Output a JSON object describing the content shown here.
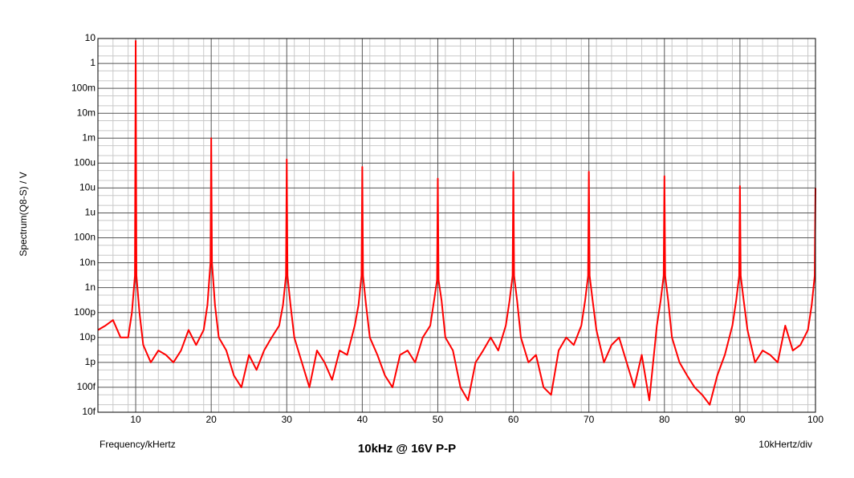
{
  "chart_data": {
    "type": "line",
    "title": "10kHz @ 16V P-P",
    "x_label": "Frequency/kHertz",
    "y_label": "Spectrum(Q8-S) / V",
    "scale_note": "10kHertz/div",
    "color": "#ff0000",
    "log_y": true,
    "grid": true,
    "minor_grid": true,
    "xlim": [
      5,
      100
    ],
    "xticks": [
      10,
      20,
      30,
      40,
      50,
      60,
      70,
      80,
      90,
      100
    ],
    "ylim": [
      1e-14,
      10
    ],
    "yticks": [
      10,
      1,
      {
        "value": 0.1,
        "label": "100m"
      },
      {
        "value": 0.01,
        "label": "10m"
      },
      {
        "value": 0.001,
        "label": "1m"
      },
      {
        "value": 0.0001,
        "label": "100u"
      },
      {
        "value": 1e-05,
        "label": "10u"
      },
      {
        "value": 1e-06,
        "label": "1u"
      },
      {
        "value": 1e-07,
        "label": "100n"
      },
      {
        "value": 1e-08,
        "label": "10n"
      },
      {
        "value": 1e-09,
        "label": "1n"
      },
      {
        "value": 1e-10,
        "label": "100p"
      },
      {
        "value": 1e-11,
        "label": "10p"
      },
      {
        "value": 1e-12,
        "label": "1p"
      },
      {
        "value": 1e-13,
        "label": "100f"
      },
      {
        "value": 1e-14,
        "label": "10f"
      }
    ],
    "x": [
      5,
      6,
      7,
      8,
      9,
      9.5,
      9.9,
      10,
      10.1,
      10.5,
      11,
      12,
      13,
      14,
      15,
      16,
      17,
      18,
      19,
      19.5,
      19.9,
      20,
      20.1,
      20.5,
      21,
      22,
      23,
      24,
      25,
      26,
      27,
      28,
      29,
      29.5,
      29.9,
      30,
      30.1,
      30.5,
      31,
      32,
      33,
      34,
      35,
      36,
      37,
      38,
      39,
      39.5,
      39.9,
      40,
      40.1,
      40.5,
      41,
      42,
      43,
      44,
      45,
      46,
      47,
      48,
      49,
      49.5,
      49.9,
      50,
      50.1,
      50.5,
      51,
      52,
      53,
      54,
      55,
      56,
      57,
      58,
      59,
      59.5,
      59.9,
      60,
      60.1,
      60.5,
      61,
      62,
      63,
      64,
      65,
      66,
      67,
      68,
      69,
      69.5,
      69.9,
      70,
      70.1,
      70.5,
      71,
      72,
      73,
      74,
      75,
      76,
      77,
      78,
      79,
      79.5,
      79.9,
      80,
      80.1,
      80.5,
      81,
      82,
      83,
      84,
      85,
      86,
      87,
      88,
      89,
      89.5,
      89.9,
      90,
      90.1,
      90.5,
      91,
      92,
      93,
      94,
      95,
      96,
      97,
      98,
      99,
      99.5,
      99.9,
      100
    ],
    "values": [
      2e-11,
      3e-11,
      5e-11,
      1e-11,
      1e-11,
      1e-10,
      3e-09,
      8,
      3e-09,
      1e-10,
      5e-12,
      1e-12,
      3e-12,
      2e-12,
      1e-12,
      3e-12,
      2e-11,
      5e-12,
      2e-11,
      2e-10,
      1e-08,
      0.001,
      1e-08,
      2e-10,
      1e-11,
      3e-12,
      3e-13,
      1e-13,
      2e-12,
      5e-13,
      3e-12,
      1e-11,
      3e-11,
      2e-10,
      3e-09,
      0.00014,
      3e-09,
      2e-10,
      1e-11,
      1e-12,
      1e-13,
      3e-12,
      1e-12,
      2e-13,
      3e-12,
      2e-12,
      3e-11,
      2e-10,
      3e-09,
      7e-05,
      3e-09,
      2e-10,
      1e-11,
      2e-12,
      3e-13,
      1e-13,
      2e-12,
      3e-12,
      1e-12,
      1e-11,
      3e-11,
      3e-10,
      2e-09,
      2.4e-05,
      2e-09,
      3e-10,
      1e-11,
      3e-12,
      1e-13,
      3e-14,
      1e-12,
      3e-12,
      1e-11,
      3e-12,
      3e-11,
      3e-10,
      3e-09,
      4.5e-05,
      3e-09,
      3e-10,
      1e-11,
      1e-12,
      2e-12,
      1e-13,
      5e-14,
      3e-12,
      1e-11,
      5e-12,
      3e-11,
      3e-10,
      3e-09,
      4.5e-05,
      3e-09,
      3e-10,
      2e-11,
      1e-12,
      5e-12,
      1e-11,
      1e-12,
      1e-13,
      2e-12,
      3e-14,
      3e-11,
      3e-10,
      3e-09,
      3e-05,
      3e-09,
      3e-10,
      1e-11,
      1e-12,
      3e-13,
      1e-13,
      5e-14,
      2e-14,
      3e-13,
      2e-12,
      3e-11,
      3e-10,
      3e-09,
      1.2e-05,
      3e-09,
      3e-10,
      2e-11,
      1e-12,
      3e-12,
      2e-12,
      1e-12,
      3e-11,
      3e-12,
      5e-12,
      2e-11,
      2e-10,
      3e-09,
      1e-05
    ]
  }
}
